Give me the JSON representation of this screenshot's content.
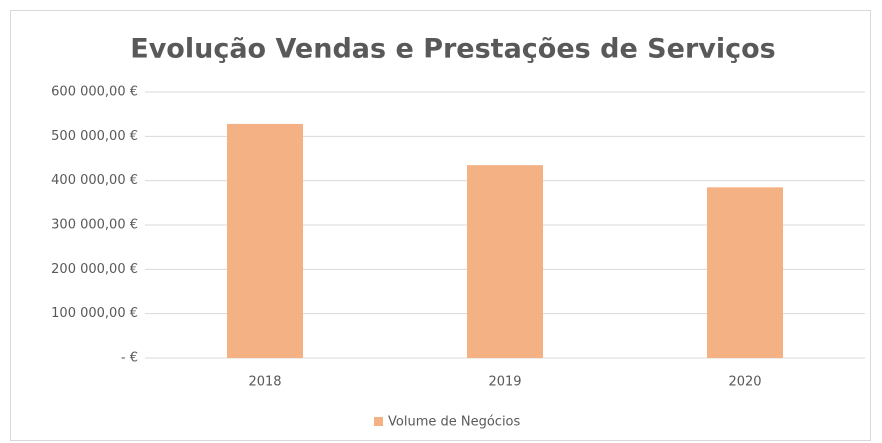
{
  "chart_data": {
    "type": "bar",
    "title": "Evolução Vendas e Prestações de Serviços",
    "categories": [
      "2018",
      "2019",
      "2020"
    ],
    "series": [
      {
        "name": "Volume de Negócios",
        "color": "#f4b183",
        "values": [
          528000,
          435000,
          385000
        ]
      }
    ],
    "ylim": [
      0,
      600000
    ],
    "yticks": [
      {
        "value": 0,
        "label": "-  €"
      },
      {
        "value": 100000,
        "label": "100 000,00 €"
      },
      {
        "value": 200000,
        "label": "200 000,00 €"
      },
      {
        "value": 300000,
        "label": "300 000,00 €"
      },
      {
        "value": 400000,
        "label": "400 000,00 €"
      },
      {
        "value": 500000,
        "label": "500 000,00 €"
      },
      {
        "value": 600000,
        "label": "600 000,00 €"
      }
    ],
    "grid": true,
    "legend": "bottom"
  }
}
